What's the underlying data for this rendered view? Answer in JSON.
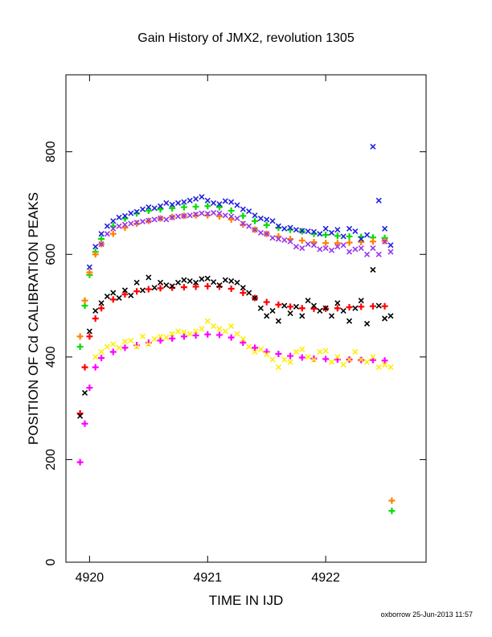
{
  "chart_data": {
    "type": "scatter",
    "title": "Gain History of JMX2, revolution 1305",
    "xlabel": "TIME IN IJD",
    "ylabel": "POSITION OF Cd CALIBRATION PEAKS",
    "xlim": [
      4919.8,
      4922.85
    ],
    "ylim": [
      0,
      950
    ],
    "x_ticks": [
      4920,
      4921,
      4922
    ],
    "y_ticks": [
      0,
      200,
      400,
      600,
      800
    ],
    "grid": false,
    "legend": "none",
    "footer": "oxborrow 25-Jun-2013 11:57",
    "series": [
      {
        "color": "#00dd00",
        "marker": "plus",
        "x": [
          4919.92,
          4919.96,
          4920.0,
          4920.05,
          4920.1,
          4920.2,
          4920.3,
          4920.4,
          4920.5,
          4920.6,
          4920.7,
          4920.8,
          4920.9,
          4921.0,
          4921.1,
          4921.2,
          4921.3,
          4921.4,
          4921.5,
          4921.6,
          4921.7,
          4921.8,
          4921.9,
          4922.0,
          4922.1,
          4922.2,
          4922.3,
          4922.4,
          4922.5,
          4922.56
        ],
        "y": [
          420,
          500,
          560,
          605,
          630,
          655,
          670,
          680,
          685,
          688,
          690,
          692,
          693,
          694,
          692,
          685,
          675,
          665,
          657,
          652,
          648,
          645,
          640,
          638,
          636,
          635,
          634,
          633,
          632,
          100
        ]
      },
      {
        "color": "#ff8000",
        "marker": "plus",
        "x": [
          4919.92,
          4919.96,
          4920.0,
          4920.05,
          4920.1,
          4920.2,
          4920.3,
          4920.4,
          4920.5,
          4920.6,
          4920.7,
          4920.8,
          4920.9,
          4921.0,
          4921.1,
          4921.2,
          4921.3,
          4921.4,
          4921.5,
          4921.6,
          4921.7,
          4921.8,
          4921.9,
          4922.0,
          4922.1,
          4922.2,
          4922.3,
          4922.4,
          4922.5,
          4922.56
        ],
        "y": [
          440,
          510,
          565,
          600,
          620,
          640,
          652,
          660,
          665,
          670,
          673,
          675,
          676,
          676,
          674,
          668,
          658,
          648,
          640,
          635,
          630,
          627,
          624,
          622,
          622,
          623,
          624,
          625,
          626,
          120
        ]
      },
      {
        "color": "#ff0000",
        "marker": "plus",
        "x": [
          4919.92,
          4919.96,
          4920.0,
          4920.05,
          4920.1,
          4920.2,
          4920.3,
          4920.4,
          4920.5,
          4920.6,
          4920.7,
          4920.8,
          4920.9,
          4921.0,
          4921.1,
          4921.2,
          4921.3,
          4921.4,
          4921.5,
          4921.6,
          4921.7,
          4921.8,
          4921.9,
          4922.0,
          4922.1,
          4922.2,
          4922.3,
          4922.4,
          4922.5
        ],
        "y": [
          290,
          380,
          440,
          475,
          495,
          512,
          522,
          528,
          532,
          534,
          535,
          536,
          537,
          538,
          537,
          533,
          525,
          515,
          507,
          502,
          498,
          495,
          494,
          494,
          495,
          497,
          498,
          499,
          499
        ]
      },
      {
        "color": "#ff00ff",
        "marker": "plus",
        "x": [
          4919.92,
          4919.96,
          4920.0,
          4920.05,
          4920.1,
          4920.2,
          4920.3,
          4920.4,
          4920.5,
          4920.6,
          4920.7,
          4920.8,
          4920.9,
          4921.0,
          4921.1,
          4921.2,
          4921.3,
          4921.4,
          4921.5,
          4921.6,
          4921.7,
          4921.8,
          4921.9,
          4922.0,
          4922.1,
          4922.2,
          4922.3,
          4922.4,
          4922.5
        ],
        "y": [
          195,
          270,
          340,
          380,
          398,
          410,
          418,
          423,
          428,
          432,
          436,
          440,
          442,
          444,
          443,
          438,
          428,
          418,
          410,
          406,
          402,
          399,
          397,
          396,
          395,
          395,
          394,
          394,
          393
        ]
      },
      {
        "color": "#2020e0",
        "marker": "cross",
        "x": [
          4920.0,
          4920.05,
          4920.1,
          4920.15,
          4920.2,
          4920.25,
          4920.3,
          4920.35,
          4920.4,
          4920.45,
          4920.5,
          4920.55,
          4920.6,
          4920.65,
          4920.7,
          4920.75,
          4920.8,
          4920.85,
          4920.9,
          4920.95,
          4921.0,
          4921.05,
          4921.1,
          4921.15,
          4921.2,
          4921.25,
          4921.3,
          4921.35,
          4921.4,
          4921.45,
          4921.5,
          4921.55,
          4921.6,
          4921.65,
          4921.7,
          4921.75,
          4921.8,
          4921.85,
          4921.9,
          4921.95,
          4922.0,
          4922.05,
          4922.1,
          4922.15,
          4922.2,
          4922.25,
          4922.3,
          4922.35,
          4922.4,
          4922.45,
          4922.5,
          4922.55
        ],
        "y": [
          575,
          615,
          640,
          655,
          665,
          672,
          675,
          680,
          683,
          688,
          692,
          690,
          694,
          700,
          697,
          700,
          702,
          705,
          708,
          712,
          705,
          700,
          698,
          704,
          702,
          696,
          688,
          684,
          676,
          670,
          668,
          665,
          655,
          650,
          652,
          648,
          646,
          645,
          644,
          640,
          650,
          642,
          648,
          635,
          650,
          645,
          630,
          638,
          810,
          705,
          650,
          618
        ]
      },
      {
        "color": "#9933ee",
        "marker": "cross",
        "x": [
          4920.1,
          4920.15,
          4920.2,
          4920.25,
          4920.3,
          4920.35,
          4920.4,
          4920.45,
          4920.5,
          4920.55,
          4920.6,
          4920.65,
          4920.7,
          4920.75,
          4920.8,
          4920.85,
          4920.9,
          4920.95,
          4921.0,
          4921.05,
          4921.1,
          4921.15,
          4921.2,
          4921.25,
          4921.3,
          4921.35,
          4921.4,
          4921.45,
          4921.5,
          4921.55,
          4921.6,
          4921.65,
          4921.7,
          4921.75,
          4921.8,
          4921.85,
          4921.9,
          4921.95,
          4922.0,
          4922.05,
          4922.1,
          4922.15,
          4922.2,
          4922.25,
          4922.3,
          4922.35,
          4922.4,
          4922.45,
          4922.5,
          4922.55
        ],
        "y": [
          620,
          640,
          650,
          655,
          658,
          660,
          662,
          664,
          666,
          668,
          670,
          668,
          672,
          674,
          675,
          676,
          678,
          680,
          679,
          681,
          680,
          676,
          674,
          670,
          660,
          655,
          648,
          642,
          640,
          632,
          630,
          628,
          625,
          615,
          612,
          620,
          618,
          610,
          612,
          608,
          615,
          618,
          605,
          610,
          612,
          600,
          612,
          600,
          625,
          605
        ]
      },
      {
        "color": "#000000",
        "marker": "cross",
        "x": [
          4919.92,
          4919.96,
          4920.0,
          4920.05,
          4920.1,
          4920.15,
          4920.2,
          4920.25,
          4920.3,
          4920.35,
          4920.4,
          4920.45,
          4920.5,
          4920.55,
          4920.6,
          4920.65,
          4920.7,
          4920.75,
          4920.8,
          4920.85,
          4920.9,
          4920.95,
          4921.0,
          4921.05,
          4921.1,
          4921.15,
          4921.2,
          4921.25,
          4921.3,
          4921.35,
          4921.4,
          4921.45,
          4921.5,
          4921.55,
          4921.6,
          4921.65,
          4921.7,
          4921.75,
          4921.8,
          4921.85,
          4921.9,
          4921.95,
          4922.0,
          4922.05,
          4922.1,
          4922.15,
          4922.2,
          4922.25,
          4922.3,
          4922.35,
          4922.4,
          4922.45,
          4922.5,
          4922.55
        ],
        "y": [
          285,
          330,
          450,
          490,
          505,
          518,
          525,
          515,
          530,
          520,
          545,
          530,
          555,
          535,
          545,
          540,
          538,
          545,
          550,
          548,
          545,
          552,
          553,
          546,
          540,
          550,
          548,
          545,
          535,
          525,
          515,
          495,
          480,
          490,
          470,
          500,
          485,
          498,
          480,
          510,
          500,
          490,
          495,
          480,
          505,
          490,
          470,
          495,
          510,
          465,
          570,
          500,
          475,
          480
        ]
      },
      {
        "color": "#ffee00",
        "marker": "cross",
        "x": [
          4920.05,
          4920.1,
          4920.15,
          4920.2,
          4920.25,
          4920.3,
          4920.35,
          4920.4,
          4920.45,
          4920.5,
          4920.55,
          4920.6,
          4920.65,
          4920.7,
          4920.75,
          4920.8,
          4920.85,
          4920.9,
          4920.95,
          4921.0,
          4921.05,
          4921.1,
          4921.15,
          4921.2,
          4921.25,
          4921.3,
          4921.35,
          4921.4,
          4921.45,
          4921.5,
          4921.55,
          4921.6,
          4921.65,
          4921.7,
          4921.75,
          4921.8,
          4921.85,
          4921.9,
          4921.95,
          4922.0,
          4922.05,
          4922.1,
          4922.15,
          4922.2,
          4922.25,
          4922.3,
          4922.35,
          4922.4,
          4922.45,
          4922.5,
          4922.55
        ],
        "y": [
          400,
          410,
          420,
          425,
          418,
          430,
          432,
          420,
          440,
          425,
          435,
          440,
          438,
          445,
          450,
          448,
          445,
          450,
          455,
          470,
          460,
          455,
          450,
          460,
          445,
          435,
          420,
          410,
          415,
          405,
          395,
          380,
          395,
          390,
          410,
          415,
          400,
          395,
          410,
          412,
          390,
          400,
          385,
          395,
          410,
          395,
          390,
          400,
          380,
          385,
          380
        ]
      }
    ]
  }
}
